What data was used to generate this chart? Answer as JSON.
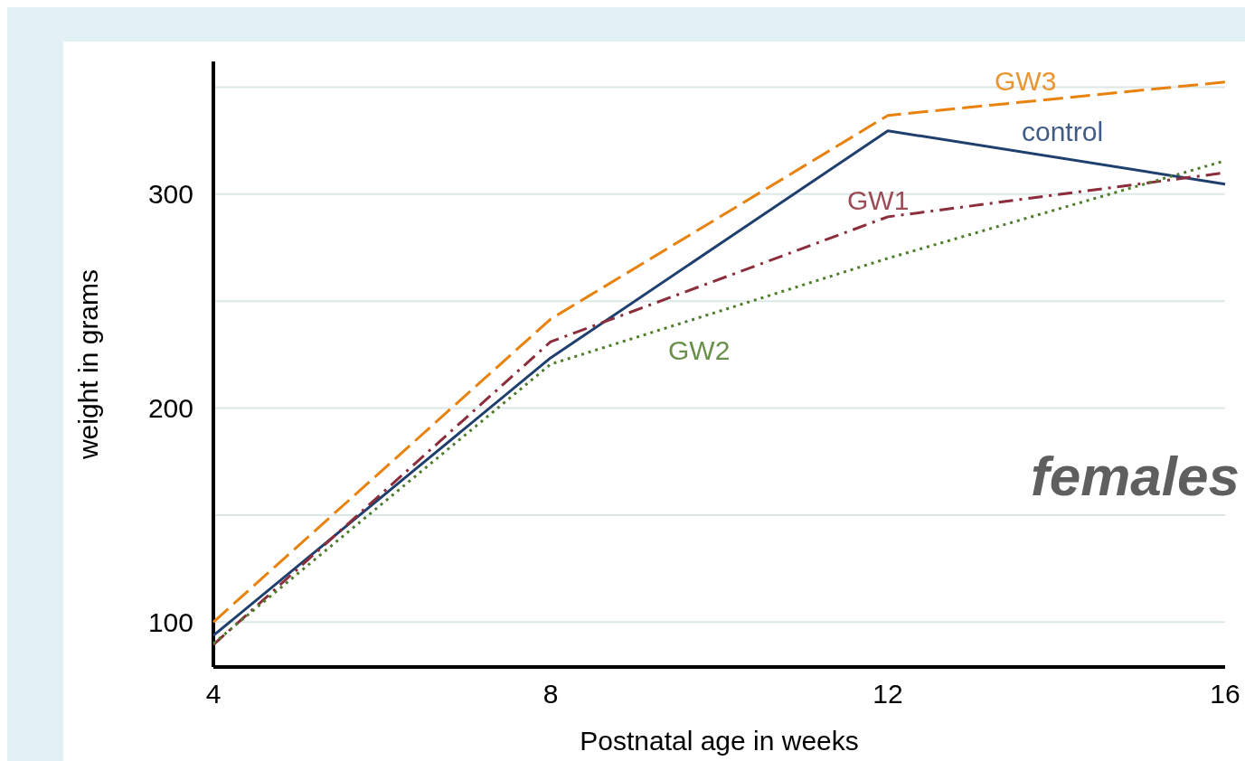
{
  "chart_data": {
    "type": "line",
    "xlabel": "Postnatal age in weeks",
    "ylabel": "weight in grams",
    "x": [
      4,
      8,
      12,
      16
    ],
    "xlim": [
      4,
      16
    ],
    "xticks": [
      4,
      8,
      12,
      16
    ],
    "ylim": [
      79,
      362
    ],
    "yticks": [
      100,
      {
        "value": 150,
        "label": null
      },
      200,
      {
        "value": 250,
        "label": null
      },
      300,
      {
        "value": 350,
        "label": null
      }
    ],
    "grid": "y",
    "marker": "none",
    "series": [
      {
        "name": "GW3",
        "color": "#e8820c",
        "line_style": "dashed",
        "values": [
          100,
          241.6,
          336.8,
          352.4
        ]
      },
      {
        "name": "control",
        "color": "#1f3f6e",
        "line_style": "solid",
        "values": [
          93.7,
          223.5,
          329.6,
          304.7
        ]
      },
      {
        "name": "GW1",
        "color": "#8b2d3a",
        "line_style": "dashdot",
        "values": [
          89.4,
          231,
          289.4,
          310
        ]
      },
      {
        "name": "GW2",
        "color": "#4e7d2a",
        "line_style": "dotted",
        "values": [
          90,
          220.5,
          270,
          315.6
        ]
      }
    ],
    "annotations": [
      "females"
    ]
  }
}
